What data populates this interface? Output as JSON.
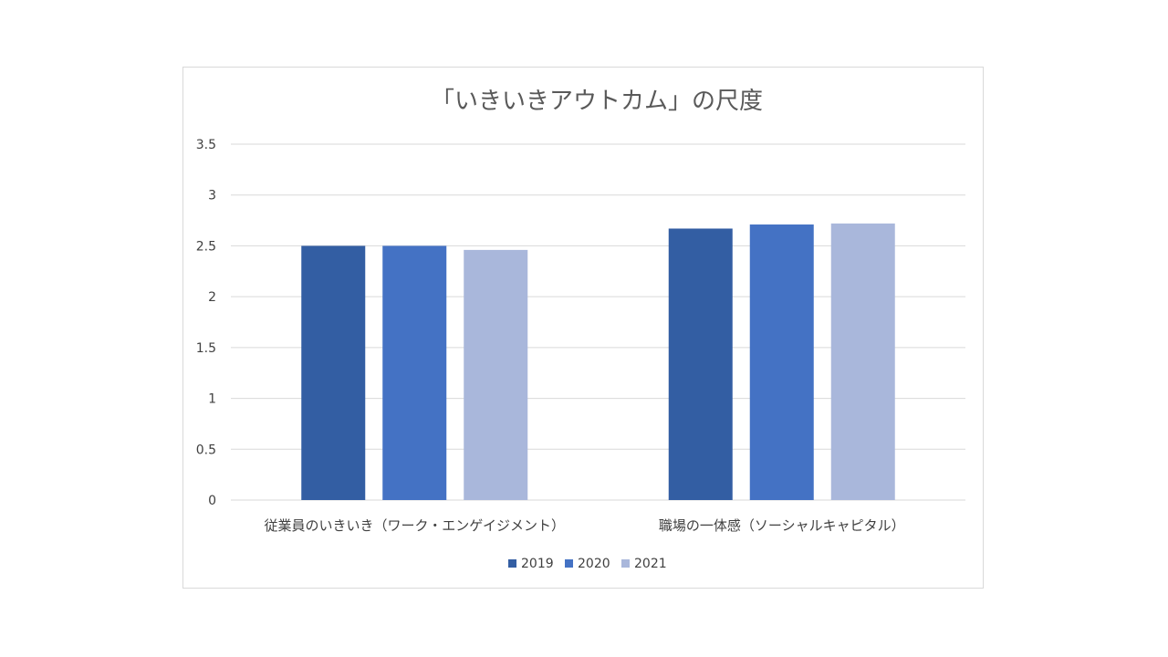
{
  "chart_data": {
    "type": "bar",
    "title": "「いきいきアウトカム」の尺度",
    "xlabel": "",
    "ylabel": "",
    "categories": [
      "従業員のいきいき（ワーク・エンゲイジメント）",
      "職場の一体感（ソーシャルキャピタル）"
    ],
    "series": [
      {
        "name": "2019",
        "values": [
          2.5,
          2.67
        ],
        "color": "#335ea3"
      },
      {
        "name": "2020",
        "values": [
          2.5,
          2.71
        ],
        "color": "#4472c4"
      },
      {
        "name": "2021",
        "values": [
          2.46,
          2.72
        ],
        "color": "#a9b7db"
      }
    ],
    "ylim": [
      0,
      3.5
    ],
    "yticks": [
      "0",
      "0.5",
      "1",
      "1.5",
      "2",
      "2.5",
      "3",
      "3.5"
    ],
    "grid": true,
    "legend_position": "bottom"
  }
}
